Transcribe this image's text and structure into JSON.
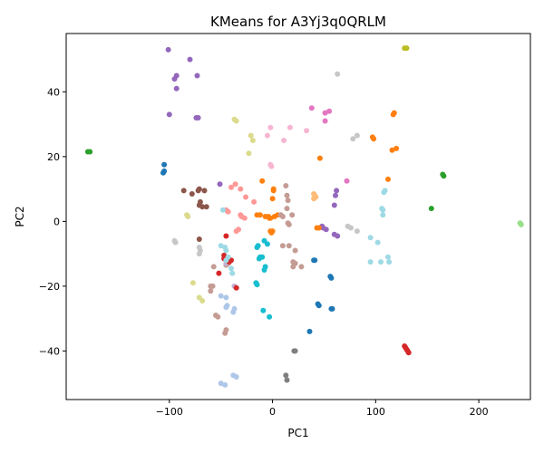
{
  "chart_data": {
    "type": "scatter",
    "title": "KMeans for A3Yj3q0QRLM",
    "xlabel": "PC1",
    "ylabel": "PC2",
    "xlim": [
      -200,
      250
    ],
    "ylim": [
      -55,
      58
    ],
    "xticks": [
      -100,
      0,
      100,
      200
    ],
    "yticks": [
      -40,
      -20,
      0,
      20,
      40
    ],
    "grid": false,
    "legend": "none",
    "palette": {
      "blue": "#1f77b4",
      "orange": "#ff7f0e",
      "green": "#2ca02c",
      "red": "#d62728",
      "purple": "#9467bd",
      "brown": "#8c564b",
      "pink": "#e377c2",
      "gray": "#7f7f7f",
      "olive": "#bcbd22",
      "cyan": "#17becf",
      "light_blue": "#aec7e8",
      "light_orange": "#ffbb78",
      "light_green": "#98df8a",
      "light_red": "#ff9896",
      "light_purple": "#c5b0d5",
      "light_brown": "#c49c94",
      "light_pink": "#f7b6d2",
      "light_gray": "#c7c7c7",
      "light_olive": "#dbdb8d",
      "light_cyan": "#9edae5"
    },
    "clusters": [
      {
        "color": "purple",
        "points": [
          [
            -101,
            53
          ],
          [
            -80,
            50
          ],
          [
            -93,
            45
          ],
          [
            -95,
            44
          ],
          [
            -73,
            45
          ],
          [
            -93,
            41
          ],
          [
            -100,
            33
          ],
          [
            -74,
            32
          ],
          [
            -72,
            32
          ],
          [
            61,
            8
          ],
          [
            62,
            9.5
          ],
          [
            60,
            5
          ],
          [
            -51,
            11.5
          ],
          [
            60,
            -4
          ],
          [
            63,
            -4.5
          ],
          [
            49,
            -2
          ],
          [
            52,
            -2.5
          ],
          [
            48,
            -1.5
          ]
        ]
      },
      {
        "color": "olive",
        "points": [
          [
            128,
            53.5
          ],
          [
            130,
            53.5
          ]
        ]
      },
      {
        "color": "light_gray",
        "points": [
          [
            63,
            45.5
          ],
          [
            78,
            25.5
          ],
          [
            82,
            26.5
          ],
          [
            -95,
            -6
          ],
          [
            -94,
            -6.5
          ],
          [
            -71,
            -8
          ],
          [
            -70,
            -9
          ],
          [
            -71,
            -10
          ],
          [
            73,
            -1.5
          ],
          [
            76,
            -2
          ],
          [
            82,
            -3
          ]
        ]
      },
      {
        "color": "light_olive",
        "points": [
          [
            -35,
            31
          ],
          [
            -37,
            31.5
          ],
          [
            -21,
            26.5
          ],
          [
            -19,
            25
          ],
          [
            -23,
            21
          ],
          [
            -83,
            2
          ],
          [
            -82,
            1.5
          ],
          [
            -77,
            -19
          ],
          [
            -71,
            -23.5
          ],
          [
            -68,
            -24.5
          ]
        ]
      },
      {
        "color": "light_pink",
        "points": [
          [
            -2,
            29
          ],
          [
            -5,
            26.5
          ],
          [
            11,
            25
          ],
          [
            17,
            29
          ],
          [
            33,
            28
          ],
          [
            -2,
            17.5
          ],
          [
            -1,
            17
          ]
        ]
      },
      {
        "color": "pink",
        "points": [
          [
            38,
            35
          ],
          [
            51,
            33.5
          ],
          [
            55,
            34
          ],
          [
            51,
            31
          ],
          [
            72,
            12.5
          ]
        ]
      },
      {
        "color": "orange",
        "points": [
          [
            118,
            33.5
          ],
          [
            117,
            33
          ],
          [
            97,
            26
          ],
          [
            98,
            25.5
          ],
          [
            46,
            19.5
          ],
          [
            116,
            22
          ],
          [
            120,
            22.5
          ],
          [
            112,
            13
          ],
          [
            -10,
            12.5
          ],
          [
            1,
            10
          ],
          [
            0,
            7
          ],
          [
            1,
            9.5
          ],
          [
            -15,
            2
          ],
          [
            -12,
            2
          ],
          [
            -7,
            1.5
          ],
          [
            -4,
            1.5
          ],
          [
            -2,
            1
          ],
          [
            -3,
            1
          ],
          [
            2,
            1.5
          ],
          [
            5,
            2
          ],
          [
            -2,
            -3
          ],
          [
            -1,
            -3.5
          ],
          [
            0,
            -3
          ],
          [
            45,
            -2
          ],
          [
            43,
            -2
          ]
        ]
      },
      {
        "color": "green",
        "points": [
          [
            -179,
            21.5
          ],
          [
            -177,
            21.5
          ],
          [
            165,
            14.5
          ],
          [
            166,
            14
          ],
          [
            154,
            4
          ]
        ]
      },
      {
        "color": "light_green",
        "points": [
          [
            240,
            -0.5
          ],
          [
            241,
            -1
          ]
        ]
      },
      {
        "color": "blue",
        "points": [
          [
            -105,
            17.5
          ],
          [
            -105,
            15.5
          ],
          [
            -106,
            15
          ],
          [
            40,
            -12
          ],
          [
            41,
            -12
          ],
          [
            56,
            -17
          ],
          [
            57,
            -17.5
          ],
          [
            44,
            -25.5
          ],
          [
            45,
            -26
          ],
          [
            57,
            -27
          ],
          [
            58,
            -27
          ],
          [
            36,
            -34
          ]
        ]
      },
      {
        "color": "light_orange",
        "points": [
          [
            40,
            8.5
          ],
          [
            41,
            8
          ],
          [
            40,
            7
          ],
          [
            42,
            7.5
          ]
        ]
      },
      {
        "color": "brown",
        "points": [
          [
            -86,
            9.5
          ],
          [
            -78,
            8.5
          ],
          [
            -71,
            10
          ],
          [
            -66,
            9.5
          ],
          [
            -72,
            9.5
          ],
          [
            -71,
            5
          ],
          [
            -70,
            6
          ],
          [
            -68,
            4.5
          ],
          [
            -64,
            4.5
          ],
          [
            -71,
            -5.5
          ]
        ]
      },
      {
        "color": "light_brown",
        "points": [
          [
            -57,
            -14
          ],
          [
            -45,
            -13.5
          ],
          [
            -43,
            -13
          ],
          [
            13,
            11
          ],
          [
            14,
            8
          ],
          [
            15,
            6.5
          ],
          [
            14,
            4
          ],
          [
            19,
            2
          ],
          [
            10,
            1.5
          ],
          [
            8,
            2
          ],
          [
            15,
            -0.5
          ],
          [
            16,
            -1
          ],
          [
            -60,
            -21.5
          ],
          [
            -58,
            -20
          ],
          [
            -55,
            -29
          ],
          [
            -53,
            -29.5
          ],
          [
            -45,
            -33.5
          ],
          [
            -46,
            -34.5
          ],
          [
            10,
            -7.5
          ],
          [
            16,
            -7.5
          ],
          [
            22,
            -9
          ],
          [
            20,
            -12.5
          ],
          [
            22,
            -13
          ],
          [
            20,
            -14
          ],
          [
            28,
            -14
          ],
          [
            -60,
            -20
          ]
        ]
      },
      {
        "color": "light_red",
        "points": [
          [
            -40,
            10.5
          ],
          [
            -36,
            11.5
          ],
          [
            -31,
            10
          ],
          [
            -26,
            7.5
          ],
          [
            -45,
            3.5
          ],
          [
            -43,
            3
          ],
          [
            -31,
            2
          ],
          [
            -30,
            1.5
          ],
          [
            -27,
            1
          ],
          [
            -35,
            -3
          ],
          [
            -33,
            -2.5
          ],
          [
            -18,
            6
          ]
        ]
      },
      {
        "color": "light_purple",
        "points": [
          [
            -45,
            -13
          ],
          [
            -37,
            -20
          ]
        ]
      },
      {
        "color": "red",
        "points": [
          [
            -52,
            -16
          ],
          [
            -47,
            -10.5
          ],
          [
            -47,
            -11.5
          ],
          [
            -44,
            -12
          ],
          [
            -42,
            -12.5
          ],
          [
            -40,
            -12
          ],
          [
            -45,
            -4.5
          ],
          [
            -35,
            -20.5
          ],
          [
            128,
            -38.5
          ],
          [
            129,
            -39
          ],
          [
            130,
            -39.5
          ],
          [
            131,
            -40
          ],
          [
            132,
            -40.5
          ]
        ]
      },
      {
        "color": "light_cyan",
        "points": [
          [
            -48,
            3.5
          ],
          [
            -50,
            -7.5
          ],
          [
            -46,
            -8
          ],
          [
            -45,
            -9
          ],
          [
            -43,
            -11
          ],
          [
            -45,
            -12
          ],
          [
            -40,
            -14.5
          ],
          [
            -39,
            -16
          ],
          [
            108,
            9
          ],
          [
            109,
            9.5
          ],
          [
            106,
            4
          ],
          [
            107,
            3.5
          ],
          [
            107,
            2
          ],
          [
            95,
            -5
          ],
          [
            102,
            -6.5
          ],
          [
            112,
            -11
          ],
          [
            113,
            -12.5
          ],
          [
            95,
            -12.5
          ],
          [
            105,
            -12.5
          ]
        ]
      },
      {
        "color": "cyan",
        "points": [
          [
            -15,
            -8
          ],
          [
            -14,
            -7.5
          ],
          [
            -8,
            -6
          ],
          [
            -5,
            -7
          ],
          [
            -12,
            -11
          ],
          [
            -13,
            -11.5
          ],
          [
            -10,
            -11
          ],
          [
            -7,
            -14
          ],
          [
            -8,
            -15
          ],
          [
            -16,
            -19
          ],
          [
            -15,
            -19.5
          ],
          [
            -9,
            -27.5
          ],
          [
            -3,
            -29.5
          ]
        ]
      },
      {
        "color": "light_blue",
        "points": [
          [
            -50,
            -23
          ],
          [
            -45,
            -23.5
          ],
          [
            -44,
            -26
          ],
          [
            -45,
            -26.5
          ],
          [
            -37,
            -27
          ],
          [
            -38,
            -28
          ],
          [
            -38,
            -47.5
          ],
          [
            -35,
            -48
          ],
          [
            -50,
            -50
          ],
          [
            -46,
            -50.5
          ]
        ]
      },
      {
        "color": "gray",
        "points": [
          [
            21,
            -40
          ],
          [
            22,
            -40
          ],
          [
            13,
            -47.5
          ],
          [
            14,
            -49
          ]
        ]
      }
    ]
  }
}
